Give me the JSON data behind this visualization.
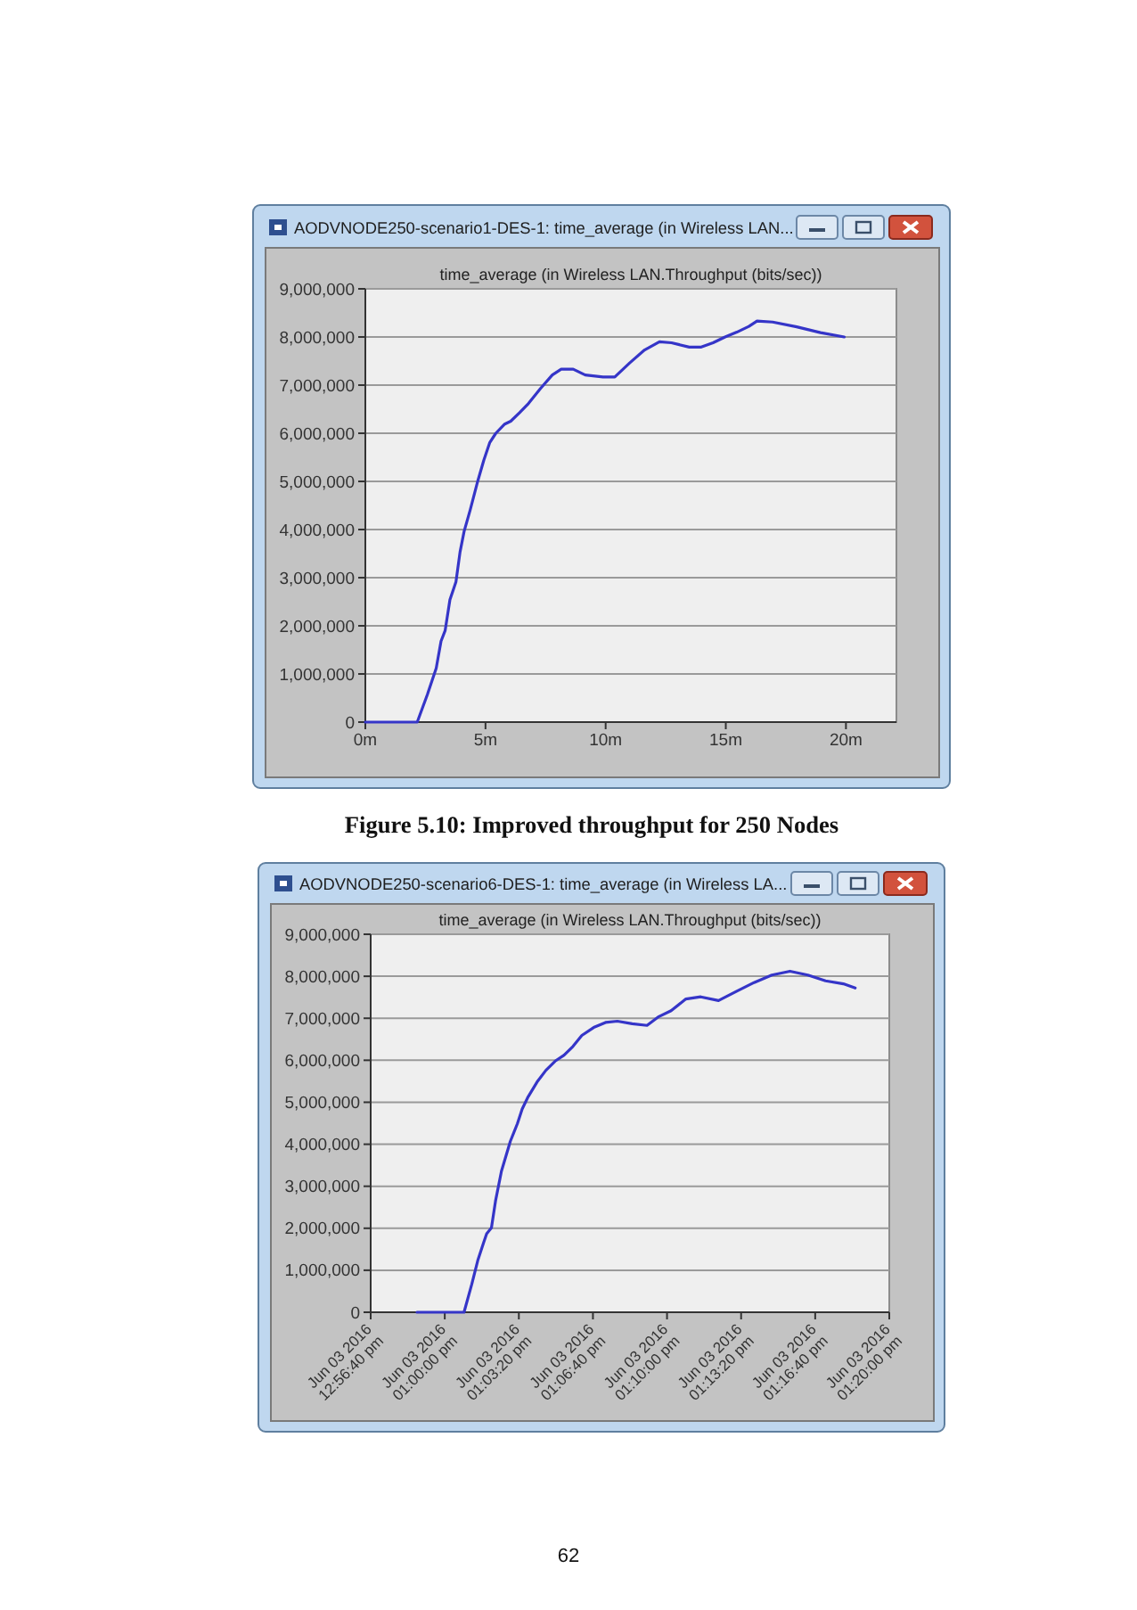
{
  "chart_data": [
    {
      "type": "line",
      "title": "AODVNODE250-scenario1-DES-1: time_average (in Wireless LAN...",
      "subtitle": "time_average (in Wireless LAN.Throughput (bits/sec))",
      "annotations": [
        "Figure 5.10: Improved throughput for 250 Nodes"
      ],
      "x": [
        0,
        2.16,
        2.58,
        2.95,
        3.15,
        3.32,
        3.52,
        3.77,
        3.94,
        4.11,
        4.36,
        4.68,
        4.93,
        5.18,
        5.43,
        5.8,
        6.05,
        6.42,
        6.79,
        7.29,
        7.78,
        8.15,
        8.65,
        9.15,
        9.89,
        10.38,
        11.0,
        11.62,
        12.24,
        12.74,
        13.48,
        13.98,
        14.47,
        14.97,
        15.46,
        15.96,
        16.3,
        16.95,
        17.95,
        18.94,
        19.93
      ],
      "series": [
        {
          "color": "#3535c8",
          "values": [
            0,
            0,
            570000,
            1120000,
            1680000,
            1900000,
            2540000,
            2910000,
            3530000,
            3960000,
            4400000,
            5010000,
            5440000,
            5810000,
            6000000,
            6190000,
            6250000,
            6430000,
            6620000,
            6930000,
            7210000,
            7330000,
            7330000,
            7210000,
            7170000,
            7170000,
            7460000,
            7730000,
            7900000,
            7880000,
            7790000,
            7790000,
            7880000,
            8000000,
            8100000,
            8220000,
            8330000,
            8310000,
            8210000,
            8090000,
            8000000
          ]
        }
      ],
      "xlim": [
        0,
        22.1
      ],
      "xticks": [
        {
          "value": 0,
          "label": "0m"
        },
        {
          "value": 5,
          "label": "5m"
        },
        {
          "value": 10,
          "label": "10m"
        },
        {
          "value": 15,
          "label": "15m"
        },
        {
          "value": 20,
          "label": "20m"
        }
      ],
      "ylim": [
        0,
        9000000
      ],
      "yticks": [
        0,
        {
          "value": 1000000,
          "label": "1,000,000"
        },
        {
          "value": 2000000,
          "label": "2,000,000"
        },
        {
          "value": 3000000,
          "label": "3,000,000"
        },
        {
          "value": 4000000,
          "label": "4,000,000"
        },
        {
          "value": 5000000,
          "label": "5,000,000"
        },
        {
          "value": 6000000,
          "label": "6,000,000"
        },
        {
          "value": 7000000,
          "label": "7,000,000"
        },
        {
          "value": 8000000,
          "label": "8,000,000"
        },
        {
          "value": 9000000,
          "label": "9,000,000"
        }
      ],
      "grid": "y"
    },
    {
      "type": "line",
      "title": "AODVNODE250-scenario6-DES-1: time_average (in Wireless LA...",
      "subtitle": "time_average (in Wireless LAN.Throughput (bits/sec))",
      "annotations": [
        "62"
      ],
      "x": [
        "2016-06-03T12:58:45",
        "2016-06-03T13:00:52",
        "2016-06-03T13:01:13",
        "2016-06-03T13:01:29",
        "2016-06-03T13:01:45",
        "2016-06-03T13:01:53",
        "2016-06-03T13:02:06",
        "2016-06-03T13:02:17",
        "2016-06-03T13:02:33",
        "2016-06-03T13:02:57",
        "2016-06-03T13:03:16",
        "2016-06-03T13:03:29",
        "2016-06-03T13:03:45",
        "2016-06-03T13:04:09",
        "2016-06-03T13:04:33",
        "2016-06-03T13:04:58",
        "2016-06-03T13:05:22",
        "2016-06-03T13:05:46",
        "2016-06-03T13:06:10",
        "2016-06-03T13:06:42",
        "2016-06-03T13:07:14",
        "2016-06-03T13:07:46",
        "2016-06-03T13:08:26",
        "2016-06-03T13:09:06",
        "2016-06-03T13:09:38",
        "2016-06-03T13:10:11",
        "2016-06-03T13:10:51",
        "2016-06-03T13:11:31",
        "2016-06-03T13:12:19",
        "2016-06-03T13:13:07",
        "2016-06-03T13:13:55",
        "2016-06-03T13:14:43",
        "2016-06-03T13:15:32",
        "2016-06-03T13:16:20",
        "2016-06-03T13:17:08",
        "2016-06-03T13:17:56",
        "2016-06-03T13:18:28"
      ],
      "series": [
        {
          "color": "#3535c8",
          "values": [
            0,
            0,
            670000,
            1230000,
            1660000,
            1870000,
            2010000,
            2650000,
            3360000,
            4070000,
            4490000,
            4840000,
            5130000,
            5480000,
            5760000,
            5980000,
            6120000,
            6330000,
            6590000,
            6780000,
            6900000,
            6930000,
            6870000,
            6830000,
            7040000,
            7180000,
            7460000,
            7510000,
            7420000,
            7640000,
            7850000,
            8030000,
            8120000,
            8030000,
            7890000,
            7820000,
            7720000
          ]
        }
      ],
      "xlim": [
        "2016-06-03T12:56:40",
        "2016-06-03T13:20:00"
      ],
      "xticks": [
        {
          "value": "2016-06-03T12:56:40",
          "label": "Jun 03 2016\n12:56:40 pm"
        },
        {
          "value": "2016-06-03T13:00:00",
          "label": "Jun 03 2016\n01:00:00 pm"
        },
        {
          "value": "2016-06-03T13:03:20",
          "label": "Jun 03 2016\n01:03:20 pm"
        },
        {
          "value": "2016-06-03T13:06:40",
          "label": "Jun 03 2016\n01:06:40 pm"
        },
        {
          "value": "2016-06-03T13:10:00",
          "label": "Jun 03 2016\n01:10:00 pm"
        },
        {
          "value": "2016-06-03T13:13:20",
          "label": "Jun 03 2016\n01:13:20 pm"
        },
        {
          "value": "2016-06-03T13:16:40",
          "label": "Jun 03 2016\n01:16:40 pm"
        },
        {
          "value": "2016-06-03T13:20:00",
          "label": "Jun 03 2016\n01:20:00 pm"
        }
      ],
      "ylim": [
        0,
        9000000
      ],
      "yticks": [
        0,
        {
          "value": 1000000,
          "label": "1,000,000"
        },
        {
          "value": 2000000,
          "label": "2,000,000"
        },
        {
          "value": 3000000,
          "label": "3,000,000"
        },
        {
          "value": 4000000,
          "label": "4,000,000"
        },
        {
          "value": 5000000,
          "label": "5,000,000"
        },
        {
          "value": 6000000,
          "label": "6,000,000"
        },
        {
          "value": 7000000,
          "label": "7,000,000"
        },
        {
          "value": 8000000,
          "label": "8,000,000"
        },
        {
          "value": 9000000,
          "label": "9,000,000"
        }
      ],
      "grid": "y"
    }
  ]
}
